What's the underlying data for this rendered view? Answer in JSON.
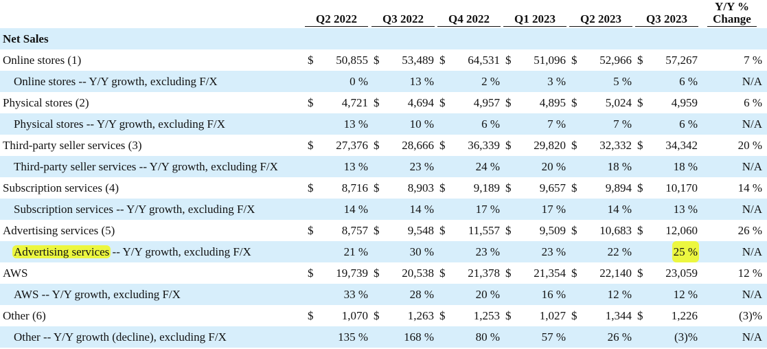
{
  "header": {
    "columns": [
      "Q2 2022",
      "Q3 2022",
      "Q4 2022",
      "Q1 2023",
      "Q2 2023",
      "Q3 2023"
    ],
    "yy_line1": "Y/Y %",
    "yy_line2": "Change"
  },
  "section_title": "Net Sales",
  "rows": [
    {
      "label": "Online stores (1)",
      "type": "amount",
      "values": [
        "50,855",
        "53,489",
        "64,531",
        "51,096",
        "52,966",
        "57,267"
      ],
      "change": "7 %"
    },
    {
      "label": "Online stores -- Y/Y growth, excluding F/X",
      "type": "pct",
      "values": [
        "0 %",
        "13 %",
        "2 %",
        "3 %",
        "5 %",
        "6 %"
      ],
      "change": "N/A"
    },
    {
      "label": "Physical stores (2)",
      "type": "amount",
      "values": [
        "4,721",
        "4,694",
        "4,957",
        "4,895",
        "5,024",
        "4,959"
      ],
      "change": "6 %"
    },
    {
      "label": "Physical stores -- Y/Y growth, excluding F/X",
      "type": "pct",
      "values": [
        "13 %",
        "10 %",
        "6 %",
        "7 %",
        "7 %",
        "6 %"
      ],
      "change": "N/A"
    },
    {
      "label": "Third-party seller services (3)",
      "type": "amount",
      "values": [
        "27,376",
        "28,666",
        "36,339",
        "29,820",
        "32,332",
        "34,342"
      ],
      "change": "20 %"
    },
    {
      "label": "Third-party seller services -- Y/Y growth, excluding F/X",
      "type": "pct",
      "values": [
        "13 %",
        "23 %",
        "24 %",
        "20 %",
        "18 %",
        "18 %"
      ],
      "change": "N/A"
    },
    {
      "label": "Subscription services (4)",
      "type": "amount",
      "values": [
        "8,716",
        "8,903",
        "9,189",
        "9,657",
        "9,894",
        "10,170"
      ],
      "change": "14 %"
    },
    {
      "label": "Subscription services -- Y/Y growth, excluding F/X",
      "type": "pct",
      "values": [
        "14 %",
        "14 %",
        "17 %",
        "17 %",
        "14 %",
        "13 %"
      ],
      "change": "N/A"
    },
    {
      "label": "Advertising services (5)",
      "type": "amount",
      "values": [
        "8,757",
        "9,548",
        "11,557",
        "9,509",
        "10,683",
        "12,060"
      ],
      "change": "26 %"
    },
    {
      "label_highlight": "Advertising services",
      "label_rest": " -- Y/Y growth, excluding F/X",
      "type": "pct",
      "values": [
        "21 %",
        "30 %",
        "23 %",
        "23 %",
        "22 %",
        "25 %"
      ],
      "change": "N/A",
      "highlight_col": 5
    },
    {
      "label": "AWS",
      "type": "amount",
      "values": [
        "19,739",
        "20,538",
        "21,378",
        "21,354",
        "22,140",
        "23,059"
      ],
      "change": "12 %"
    },
    {
      "label": "AWS -- Y/Y growth, excluding F/X",
      "type": "pct",
      "values": [
        "33 %",
        "28 %",
        "20 %",
        "16 %",
        "12 %",
        "12 %"
      ],
      "change": "N/A"
    },
    {
      "label": "Other (6)",
      "type": "amount",
      "values": [
        "1,070",
        "1,263",
        "1,253",
        "1,027",
        "1,344",
        "1,226"
      ],
      "change": "(3)%"
    },
    {
      "label": "Other -- Y/Y growth (decline), excluding F/X",
      "type": "pct",
      "values": [
        "135 %",
        "168 %",
        "80 %",
        "57 %",
        "26 %",
        "(3)%"
      ],
      "change": "N/A"
    }
  ],
  "currency_symbol": "$",
  "colors": {
    "row_band": "#d7eefb",
    "highlight": "#f0f81e"
  }
}
